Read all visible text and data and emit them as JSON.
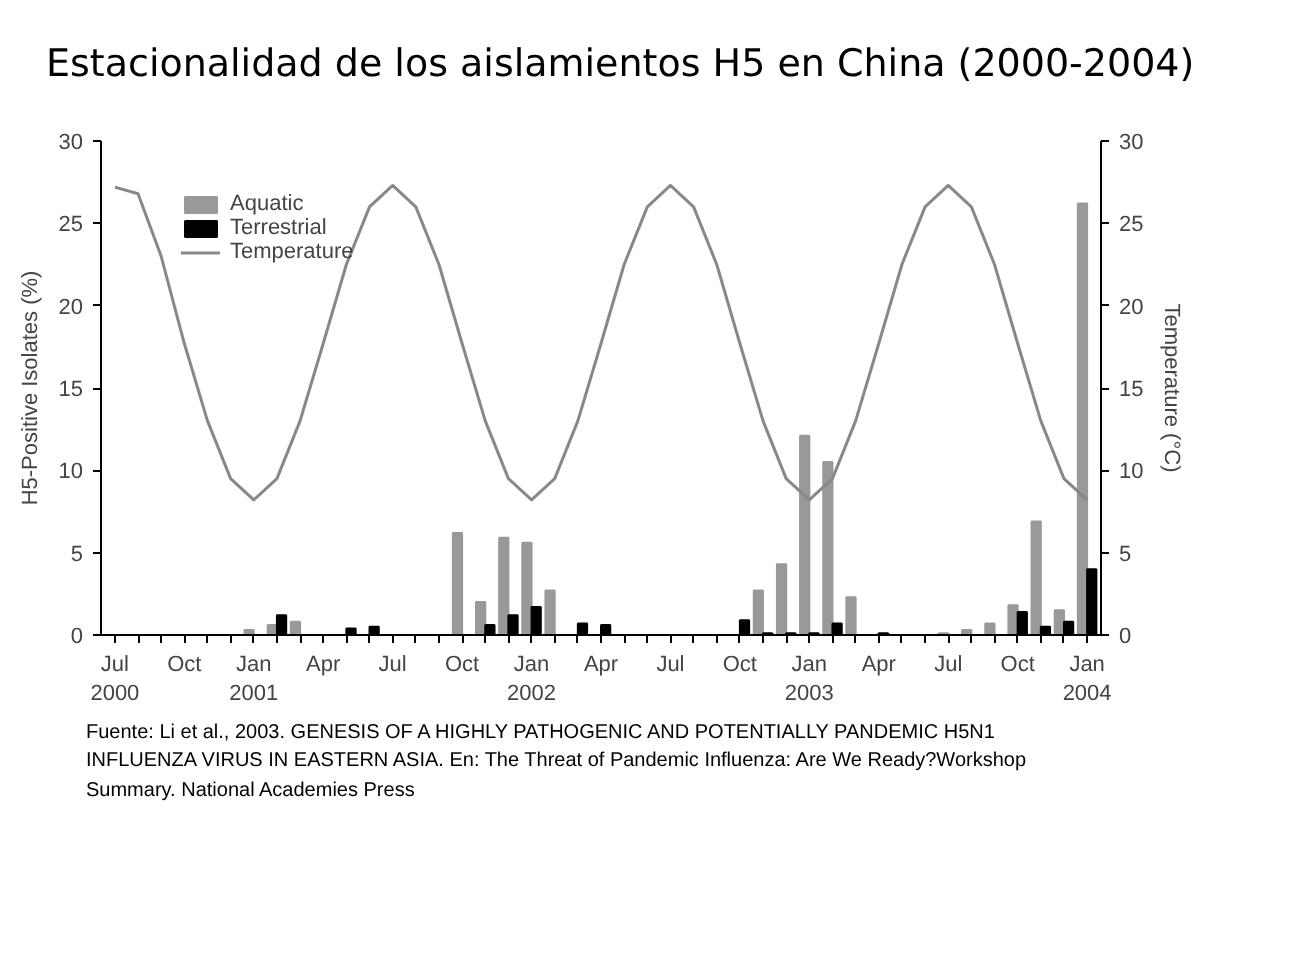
{
  "chart_data": {
    "type": "bar",
    "title": "Estacionalidad de los aislamientos H5 en China (2000-2004)",
    "ylabel": "H5-Positive Isolates (%)",
    "y2label": "Temperature (°C)",
    "categories": [
      "Jul\n2000",
      null,
      null,
      "Oct",
      null,
      null,
      "Jan\n2001",
      null,
      null,
      "Apr",
      null,
      null,
      "Jul",
      null,
      null,
      "Oct",
      null,
      null,
      "Jan\n2002",
      null,
      null,
      "Apr",
      null,
      null,
      "Jul",
      null,
      null,
      "Oct",
      null,
      null,
      "Jan\n2003",
      null,
      null,
      "Apr",
      null,
      null,
      "Jul",
      null,
      null,
      "Oct",
      null,
      null,
      "Jan\n2004"
    ],
    "series": [
      {
        "name": "Aquatic",
        "color": "#999999",
        "values": [
          0,
          0,
          0,
          0,
          0,
          0,
          0.3,
          0.6,
          0.8,
          0,
          0,
          0,
          0,
          0,
          0,
          6.2,
          2.0,
          5.9,
          5.6,
          2.7,
          0,
          0,
          0,
          0,
          0,
          0,
          0,
          0,
          2.7,
          4.3,
          12.1,
          10.5,
          2.3,
          0,
          0,
          0,
          0.1,
          0.3,
          0.7,
          1.8,
          6.9,
          1.5,
          26.2
        ]
      },
      {
        "name": "Terrestrial",
        "color": "#000000",
        "values": [
          0,
          0,
          0,
          0,
          0,
          0,
          0,
          1.2,
          0,
          0,
          0.4,
          0.5,
          0,
          0,
          0,
          0,
          0.6,
          1.2,
          1.7,
          0,
          0.7,
          0.6,
          0,
          0,
          0,
          0,
          0,
          0.9,
          0.1,
          0.1,
          0.1,
          0.7,
          0,
          0.1,
          0,
          0,
          0,
          0,
          0,
          1.4,
          0.5,
          0.8,
          4.0
        ]
      },
      {
        "name": "Temperature",
        "type": "line",
        "axis": "y2",
        "color": "#888888",
        "values": [
          27.2,
          26.8,
          23.0,
          17.7,
          13.0,
          9.5,
          8.2,
          9.5,
          13.0,
          17.7,
          22.5,
          26.0,
          27.3,
          26.0,
          22.5,
          17.7,
          13.0,
          9.5,
          8.2,
          9.5,
          13.0,
          17.7,
          22.5,
          26.0,
          27.3,
          26.0,
          22.5,
          17.7,
          13.0,
          9.5,
          8.2,
          9.5,
          13.0,
          17.7,
          22.5,
          26.0,
          27.3,
          26.0,
          22.5,
          17.7,
          13.0,
          9.5,
          8.2
        ]
      }
    ],
    "ylim": [
      0,
      30
    ],
    "yticks": [
      0,
      5,
      10,
      15,
      20,
      25,
      30
    ],
    "y2lim": [
      0,
      30
    ],
    "y2ticks": [
      0,
      5,
      10,
      15,
      20,
      25,
      30
    ],
    "grid": false,
    "legend": "top left",
    "annotations": [
      "Fuente: Li et al., 2003. GENESIS OF A HIGHLY PATHOGENIC AND POTENTIALLY PANDEMIC H5N1 INFLUENZA VIRUS IN EASTERN ASIA. En: The Threat of Pandemic Influenza: Are We Ready?Workshop Summary. National Academies Press"
    ]
  }
}
